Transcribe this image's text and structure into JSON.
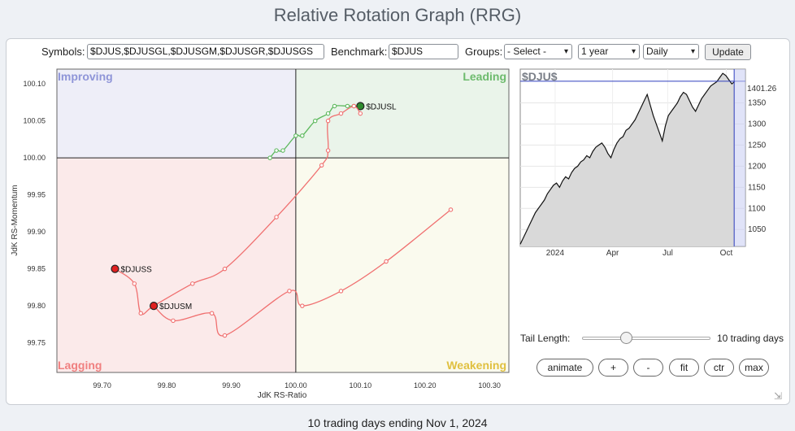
{
  "title": "Relative Rotation Graph (RRG)",
  "controls": {
    "symbols_label": "Symbols:",
    "symbols_value": "$DJUS,$DJUSGL,$DJUSGM,$DJUSGR,$DJUSGS",
    "benchmark_label": "Benchmark:",
    "benchmark_value": "$DJUS",
    "groups_label": "Groups:",
    "groups_selected": "- Select -",
    "period_selected": "1 year",
    "frequency_selected": "Daily",
    "update_label": "Update"
  },
  "tail": {
    "label": "Tail Length:",
    "value_text": "10 trading days",
    "slider_fraction": 0.33
  },
  "buttons": {
    "animate": "animate",
    "plus": "+",
    "minus": "-",
    "fit": "fit",
    "ctr": "ctr",
    "max": "max"
  },
  "footer": "10 trading days ending Nov 1, 2024",
  "chart_data": [
    {
      "type": "scatter",
      "xlabel": "JdK RS-Ratio",
      "ylabel": "JdK RS-Momentum",
      "xlim": [
        99.63,
        100.33
      ],
      "ylim": [
        99.71,
        100.12
      ],
      "xticks": [
        "99.70",
        "99.80",
        "99.90",
        "100.00",
        "100.10",
        "100.20",
        "100.30"
      ],
      "yticks": [
        "99.75",
        "99.80",
        "99.85",
        "99.90",
        "99.95",
        "100.00",
        "100.05",
        "100.10"
      ],
      "quadrants": {
        "top_left": "Improving",
        "top_right": "Leading",
        "bottom_left": "Lagging",
        "bottom_right": "Weakening"
      },
      "colors": {
        "improving": "#eeeef8",
        "leading": "#eaf4ea",
        "lagging": "#fbeaea",
        "weakening": "#fafaee",
        "lagging_tail": "#f07070",
        "leading_tail": "#5cb85c"
      },
      "series": [
        {
          "name": "$DJUSL",
          "color": "#5cb85c",
          "head_color": "#2e8b2e",
          "points": [
            [
              99.96,
              100.0
            ],
            [
              99.97,
              100.01
            ],
            [
              99.98,
              100.01
            ],
            [
              100.0,
              100.03
            ],
            [
              100.01,
              100.03
            ],
            [
              100.03,
              100.05
            ],
            [
              100.05,
              100.06
            ],
            [
              100.06,
              100.07
            ],
            [
              100.08,
              100.07
            ],
            [
              100.09,
              100.07
            ],
            [
              100.1,
              100.07
            ]
          ]
        },
        {
          "name": "$DJUSS",
          "color": "#f07070",
          "head_color": "#e02020",
          "points": [
            [
              100.1,
              100.06
            ],
            [
              100.09,
              100.07
            ],
            [
              100.07,
              100.06
            ],
            [
              100.05,
              100.05
            ],
            [
              100.05,
              100.01
            ],
            [
              100.04,
              99.99
            ],
            [
              99.97,
              99.92
            ],
            [
              99.89,
              99.85
            ],
            [
              99.84,
              99.83
            ],
            [
              99.78,
              99.8
            ],
            [
              99.76,
              99.79
            ],
            [
              99.75,
              99.83
            ],
            [
              99.72,
              99.85
            ]
          ]
        },
        {
          "name": "$DJUSM",
          "color": "#f07070",
          "head_color": "#e02020",
          "points": [
            [
              100.24,
              99.93
            ],
            [
              100.14,
              99.86
            ],
            [
              100.07,
              99.82
            ],
            [
              100.01,
              99.8
            ],
            [
              99.99,
              99.82
            ],
            [
              99.89,
              99.76
            ],
            [
              99.87,
              99.79
            ],
            [
              99.81,
              99.78
            ],
            [
              99.78,
              99.8
            ]
          ]
        }
      ]
    },
    {
      "type": "line",
      "title": "$DJU$",
      "x_labels": [
        "2024",
        "Apr",
        "Jul",
        "Oct"
      ],
      "y_ticks": [
        1050,
        1100,
        1150,
        1200,
        1250,
        1300,
        1350
      ],
      "last_value": "1401.26",
      "ylim": [
        1010,
        1430
      ],
      "values": [
        1015,
        1030,
        1045,
        1060,
        1075,
        1090,
        1100,
        1110,
        1120,
        1135,
        1145,
        1155,
        1160,
        1150,
        1165,
        1175,
        1170,
        1185,
        1195,
        1200,
        1210,
        1215,
        1225,
        1220,
        1235,
        1245,
        1250,
        1255,
        1245,
        1230,
        1220,
        1240,
        1255,
        1265,
        1270,
        1285,
        1290,
        1300,
        1310,
        1325,
        1340,
        1355,
        1370,
        1345,
        1320,
        1300,
        1280,
        1260,
        1295,
        1320,
        1330,
        1340,
        1350,
        1365,
        1375,
        1370,
        1355,
        1340,
        1330,
        1345,
        1360,
        1370,
        1380,
        1390,
        1395,
        1400,
        1410,
        1420,
        1415,
        1405,
        1395,
        1401
      ]
    }
  ]
}
